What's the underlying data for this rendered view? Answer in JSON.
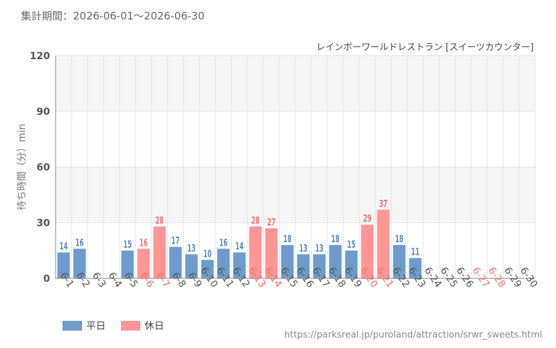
{
  "header": {
    "period_label": "集計期間：2026-06-01～2026-06-30"
  },
  "footer": {
    "source_url": "https://parksreal.jp/puroland/attraction/srwr_sweets.html"
  },
  "chart_data": {
    "type": "bar",
    "title": "レインボーワールドレストラン [スイーツカウンター]",
    "ylabel": "待ち時間（分）min",
    "xlabel": "",
    "ylim": [
      0,
      120
    ],
    "yticks": [
      0,
      30,
      60,
      90,
      120
    ],
    "grid": true,
    "legend_position": "bottom-left",
    "colors": {
      "weekday": "#6d9ccc",
      "holiday": "#ff9696",
      "weekday_label": "#5b89b8",
      "holiday_label": "#f07070",
      "weekday_tick": "#555555",
      "holiday_tick": "#f07070"
    },
    "legend": [
      {
        "name": "平日",
        "key": "weekday"
      },
      {
        "name": "休日",
        "key": "holiday"
      }
    ],
    "categories": [
      "6-1",
      "6-2",
      "6-3",
      "6-4",
      "6-5",
      "6-6",
      "6-7",
      "6-8",
      "6-9",
      "6-10",
      "6-11",
      "6-12",
      "6-13",
      "6-14",
      "6-15",
      "6-16",
      "6-17",
      "6-18",
      "6-19",
      "6-20",
      "6-21",
      "6-22",
      "6-23",
      "6-24",
      "6-25",
      "6-26",
      "6-27",
      "6-28",
      "6-29",
      "6-30"
    ],
    "day_types": [
      "weekday",
      "weekday",
      "weekday",
      "weekday",
      "weekday",
      "holiday",
      "holiday",
      "weekday",
      "weekday",
      "weekday",
      "weekday",
      "weekday",
      "holiday",
      "holiday",
      "weekday",
      "weekday",
      "weekday",
      "weekday",
      "weekday",
      "holiday",
      "holiday",
      "weekday",
      "weekday",
      "weekday",
      "weekday",
      "weekday",
      "holiday",
      "holiday",
      "weekday",
      "weekday"
    ],
    "values": [
      14,
      16,
      null,
      null,
      15,
      16,
      28,
      17,
      13,
      10,
      16,
      14,
      28,
      27,
      18,
      13,
      13,
      18,
      15,
      29,
      37,
      18,
      11,
      null,
      null,
      null,
      null,
      null,
      null,
      null
    ]
  }
}
